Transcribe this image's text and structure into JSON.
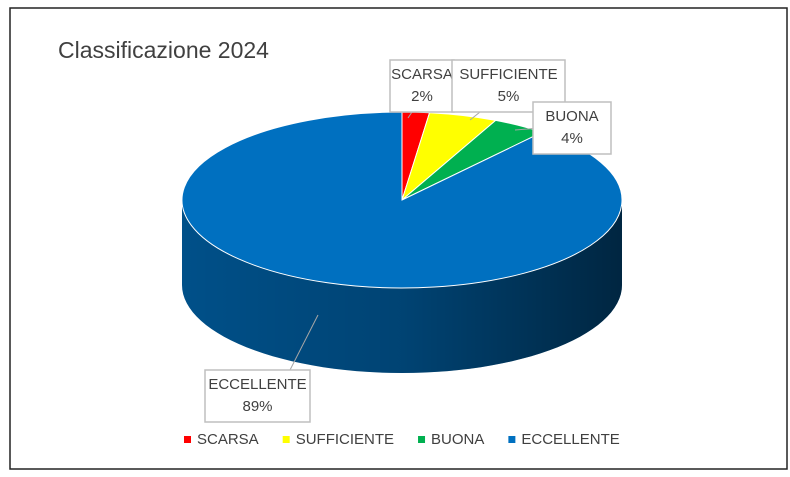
{
  "chart_data": {
    "type": "pie",
    "title": "Classificazione 2024",
    "categories": [
      "SCARSA",
      "SUFFICIENTE",
      "BUONA",
      "ECCELLENTE"
    ],
    "values": [
      2,
      5,
      4,
      89
    ],
    "value_labels": [
      "2%",
      "5%",
      "4%",
      "89%"
    ],
    "colors": [
      "#ff0000",
      "#ffff00",
      "#00b050",
      "#0070c0"
    ],
    "legend": "bottom"
  }
}
